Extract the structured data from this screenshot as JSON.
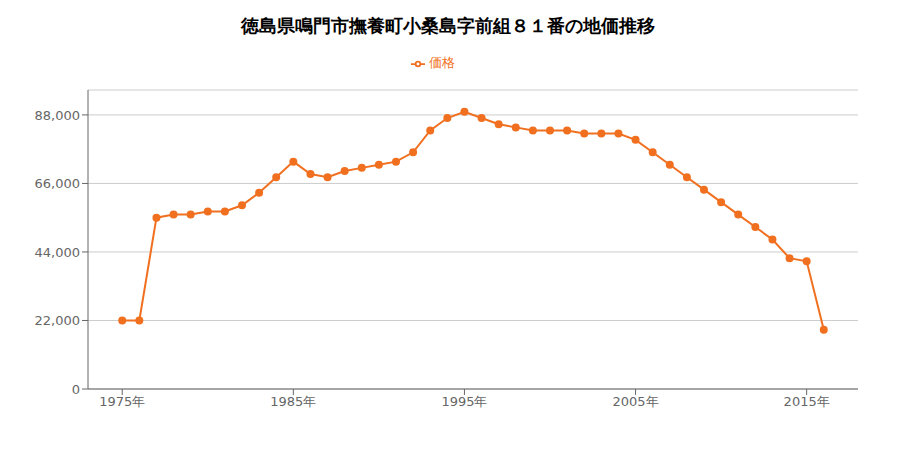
{
  "chart_data": {
    "type": "line",
    "title": "徳島県鳴門市撫養町小桑島字前組８１番の地価推移",
    "x": [
      1975,
      1976,
      1977,
      1978,
      1979,
      1980,
      1981,
      1982,
      1983,
      1984,
      1985,
      1986,
      1987,
      1988,
      1989,
      1990,
      1991,
      1992,
      1993,
      1994,
      1995,
      1996,
      1997,
      1998,
      1999,
      2000,
      2001,
      2002,
      2003,
      2004,
      2005,
      2006,
      2007,
      2008,
      2009,
      2010,
      2011,
      2012,
      2013,
      2014,
      2015,
      2016
    ],
    "series": [
      {
        "name": "価格",
        "color": "#f07020",
        "marker": "circle",
        "values": [
          22000,
          22000,
          55000,
          56000,
          56000,
          57000,
          57000,
          59000,
          63000,
          68000,
          73000,
          69000,
          68000,
          70000,
          71000,
          72000,
          73000,
          76000,
          83000,
          87000,
          89000,
          87000,
          85000,
          84000,
          83000,
          83000,
          83000,
          82000,
          82000,
          82000,
          80000,
          76000,
          72000,
          68000,
          64000,
          60000,
          56000,
          52000,
          48000,
          42000,
          41000,
          19000
        ]
      }
    ],
    "xlim": [
      1973,
      2018
    ],
    "xticks": [
      {
        "value": 1975,
        "label": "1975年"
      },
      {
        "value": 1985,
        "label": "1985年"
      },
      {
        "value": 1995,
        "label": "1995年"
      },
      {
        "value": 2005,
        "label": "2005年"
      },
      {
        "value": 2015,
        "label": "2015年"
      }
    ],
    "ylim": [
      0,
      96000
    ],
    "yticks": [
      0,
      {
        "value": 22000,
        "label": "22,000"
      },
      {
        "value": 44000,
        "label": "44,000"
      },
      {
        "value": 66000,
        "label": "66,000"
      },
      {
        "value": 88000,
        "label": "88,000"
      }
    ],
    "grid": "y",
    "legend": "top"
  }
}
